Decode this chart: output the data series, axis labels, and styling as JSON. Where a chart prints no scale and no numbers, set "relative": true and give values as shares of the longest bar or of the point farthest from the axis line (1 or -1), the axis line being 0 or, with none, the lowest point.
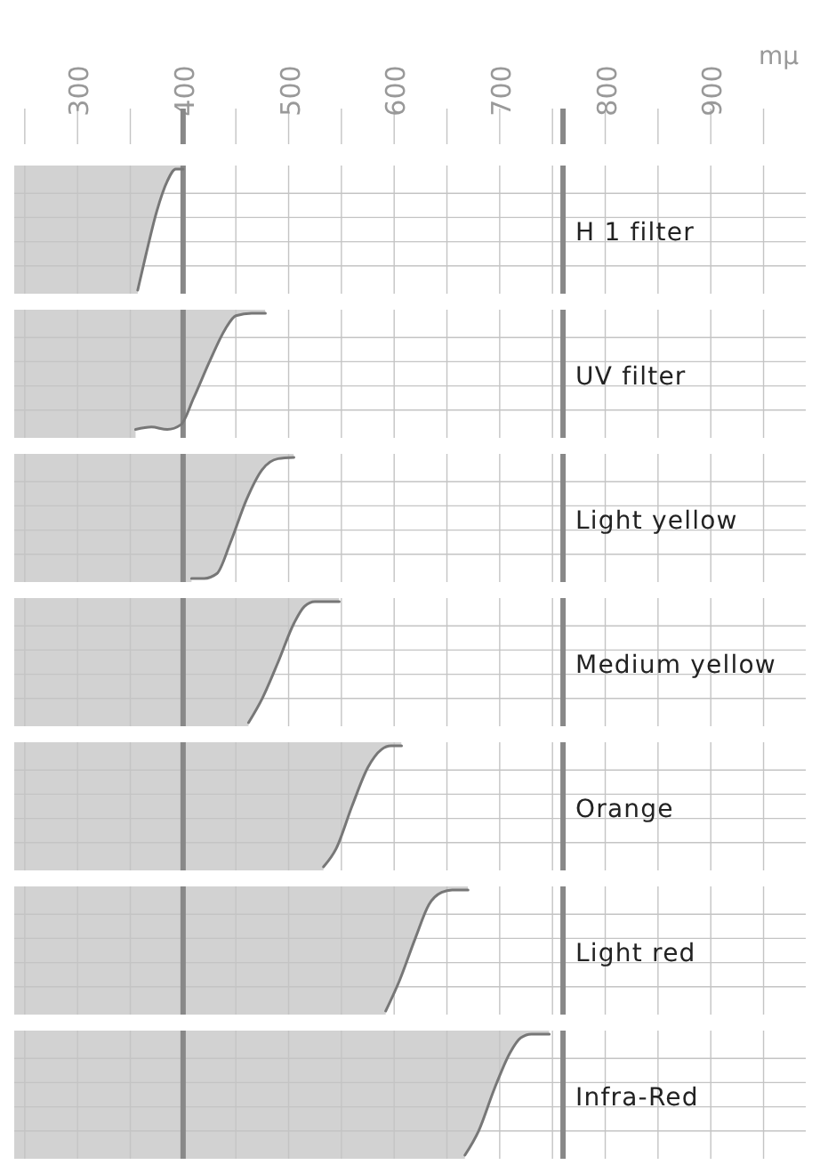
{
  "chart_data": [
    {
      "type": "line",
      "title": "H 1 filter",
      "xlabel": "mμ",
      "relative": true,
      "xlim": [
        240,
        990
      ],
      "xticks": [
        {
          "value": 250,
          "label": null
        },
        300,
        {
          "value": 350,
          "label": null
        },
        400,
        {
          "value": 450,
          "label": null
        },
        500,
        {
          "value": 550,
          "label": null
        },
        600,
        {
          "value": 650,
          "label": null
        },
        700,
        {
          "value": 750,
          "label": null
        },
        800,
        {
          "value": 850,
          "label": null
        },
        900,
        {
          "value": 950,
          "label": null
        }
      ],
      "grid": true,
      "ref_lines": [
        {
          "axis": "x",
          "value": 400,
          "color": "#888888"
        },
        {
          "axis": "x",
          "value": 760,
          "color": "#888888"
        }
      ],
      "bands": [
        {
          "axis": "x",
          "from": 240,
          "to": 400,
          "color": "#d2d2d2"
        }
      ],
      "series": [
        {
          "color": "#777777",
          "x": [
            357,
            365,
            375,
            385,
            393,
            400
          ],
          "values": [
            0,
            0.3,
            0.65,
            0.9,
            1,
            1
          ]
        }
      ]
    },
    {
      "type": "line",
      "title": "UV filter",
      "relative": true,
      "tick_labels": false,
      "xlim": [
        240,
        990
      ],
      "xticks": [
        {
          "value": 250,
          "label": null
        },
        {
          "value": 300,
          "label": null
        },
        {
          "value": 350,
          "label": null
        },
        {
          "value": 400,
          "label": null
        },
        {
          "value": 450,
          "label": null
        },
        {
          "value": 500,
          "label": null
        },
        {
          "value": 550,
          "label": null
        },
        {
          "value": 600,
          "label": null
        },
        {
          "value": 650,
          "label": null
        },
        {
          "value": 700,
          "label": null
        },
        {
          "value": 750,
          "label": null
        },
        {
          "value": 800,
          "label": null
        },
        {
          "value": 850,
          "label": null
        },
        {
          "value": 900,
          "label": null
        },
        {
          "value": 950,
          "label": null
        }
      ],
      "grid": true,
      "ref_lines": [
        {
          "axis": "x",
          "value": 400,
          "color": "#888888"
        },
        {
          "axis": "x",
          "value": 760,
          "color": "#888888"
        }
      ],
      "bands": [
        {
          "axis": "x",
          "from": 240,
          "to": 478,
          "color": "#d2d2d2"
        }
      ],
      "series": [
        {
          "color": "#777777",
          "x": [
            355,
            370,
            385,
            398,
            410,
            425,
            440,
            450,
            465,
            478
          ],
          "values": [
            0.04,
            0.06,
            0.04,
            0.08,
            0.3,
            0.6,
            0.87,
            0.98,
            1,
            1
          ]
        }
      ]
    },
    {
      "type": "line",
      "title": "Light yellow",
      "relative": true,
      "tick_labels": false,
      "xlim": [
        240,
        990
      ],
      "xticks": [
        {
          "value": 250,
          "label": null
        },
        {
          "value": 300,
          "label": null
        },
        {
          "value": 350,
          "label": null
        },
        {
          "value": 400,
          "label": null
        },
        {
          "value": 450,
          "label": null
        },
        {
          "value": 500,
          "label": null
        },
        {
          "value": 550,
          "label": null
        },
        {
          "value": 600,
          "label": null
        },
        {
          "value": 650,
          "label": null
        },
        {
          "value": 700,
          "label": null
        },
        {
          "value": 750,
          "label": null
        },
        {
          "value": 800,
          "label": null
        },
        {
          "value": 850,
          "label": null
        },
        {
          "value": 900,
          "label": null
        },
        {
          "value": 950,
          "label": null
        }
      ],
      "grid": true,
      "ref_lines": [
        {
          "axis": "x",
          "value": 400,
          "color": "#888888"
        },
        {
          "axis": "x",
          "value": 760,
          "color": "#888888"
        }
      ],
      "bands": [
        {
          "axis": "x",
          "from": 240,
          "to": 505,
          "color": "#d2d2d2"
        }
      ],
      "series": [
        {
          "color": "#777777",
          "x": [
            408,
            420,
            432,
            445,
            460,
            475,
            490,
            505
          ],
          "values": [
            0,
            0,
            0.04,
            0.3,
            0.65,
            0.9,
            0.99,
            1
          ]
        }
      ]
    },
    {
      "type": "line",
      "title": "Medium yellow",
      "relative": true,
      "tick_labels": false,
      "xlim": [
        240,
        990
      ],
      "xticks": [
        {
          "value": 250,
          "label": null
        },
        {
          "value": 300,
          "label": null
        },
        {
          "value": 350,
          "label": null
        },
        {
          "value": 400,
          "label": null
        },
        {
          "value": 450,
          "label": null
        },
        {
          "value": 500,
          "label": null
        },
        {
          "value": 550,
          "label": null
        },
        {
          "value": 600,
          "label": null
        },
        {
          "value": 650,
          "label": null
        },
        {
          "value": 700,
          "label": null
        },
        {
          "value": 750,
          "label": null
        },
        {
          "value": 800,
          "label": null
        },
        {
          "value": 850,
          "label": null
        },
        {
          "value": 900,
          "label": null
        },
        {
          "value": 950,
          "label": null
        }
      ],
      "grid": true,
      "ref_lines": [
        {
          "axis": "x",
          "value": 400,
          "color": "#888888"
        },
        {
          "axis": "x",
          "value": 760,
          "color": "#888888"
        }
      ],
      "bands": [
        {
          "axis": "x",
          "from": 240,
          "to": 548,
          "color": "#d2d2d2"
        }
      ],
      "series": [
        {
          "color": "#777777",
          "x": [
            462,
            475,
            490,
            505,
            515,
            525,
            548
          ],
          "values": [
            0,
            0.2,
            0.5,
            0.82,
            0.96,
            1,
            1
          ]
        }
      ]
    },
    {
      "type": "line",
      "title": "Orange",
      "relative": true,
      "tick_labels": false,
      "xlim": [
        240,
        990
      ],
      "xticks": [
        {
          "value": 250,
          "label": null
        },
        {
          "value": 300,
          "label": null
        },
        {
          "value": 350,
          "label": null
        },
        {
          "value": 400,
          "label": null
        },
        {
          "value": 450,
          "label": null
        },
        {
          "value": 500,
          "label": null
        },
        {
          "value": 550,
          "label": null
        },
        {
          "value": 600,
          "label": null
        },
        {
          "value": 650,
          "label": null
        },
        {
          "value": 700,
          "label": null
        },
        {
          "value": 750,
          "label": null
        },
        {
          "value": 800,
          "label": null
        },
        {
          "value": 850,
          "label": null
        },
        {
          "value": 900,
          "label": null
        },
        {
          "value": 950,
          "label": null
        }
      ],
      "grid": true,
      "ref_lines": [
        {
          "axis": "x",
          "value": 400,
          "color": "#888888"
        },
        {
          "axis": "x",
          "value": 760,
          "color": "#888888"
        }
      ],
      "bands": [
        {
          "axis": "x",
          "from": 240,
          "to": 607,
          "color": "#d2d2d2"
        }
      ],
      "series": [
        {
          "color": "#777777",
          "x": [
            533,
            545,
            560,
            575,
            588,
            597,
            607
          ],
          "values": [
            0,
            0.15,
            0.5,
            0.82,
            0.97,
            1,
            1
          ]
        }
      ]
    },
    {
      "type": "line",
      "title": "Light red",
      "relative": true,
      "tick_labels": false,
      "xlim": [
        240,
        990
      ],
      "xticks": [
        {
          "value": 250,
          "label": null
        },
        {
          "value": 300,
          "label": null
        },
        {
          "value": 350,
          "label": null
        },
        {
          "value": 400,
          "label": null
        },
        {
          "value": 450,
          "label": null
        },
        {
          "value": 500,
          "label": null
        },
        {
          "value": 550,
          "label": null
        },
        {
          "value": 600,
          "label": null
        },
        {
          "value": 650,
          "label": null
        },
        {
          "value": 700,
          "label": null
        },
        {
          "value": 750,
          "label": null
        },
        {
          "value": 800,
          "label": null
        },
        {
          "value": 850,
          "label": null
        },
        {
          "value": 900,
          "label": null
        },
        {
          "value": 950,
          "label": null
        }
      ],
      "grid": true,
      "ref_lines": [
        {
          "axis": "x",
          "value": 400,
          "color": "#888888"
        },
        {
          "axis": "x",
          "value": 760,
          "color": "#888888"
        }
      ],
      "bands": [
        {
          "axis": "x",
          "from": 240,
          "to": 670,
          "color": "#d2d2d2"
        }
      ],
      "series": [
        {
          "color": "#777777",
          "x": [
            592,
            605,
            620,
            633,
            645,
            655,
            670
          ],
          "values": [
            0,
            0.25,
            0.6,
            0.88,
            0.98,
            1,
            1
          ]
        }
      ]
    },
    {
      "type": "line",
      "title": "Infra-Red",
      "relative": true,
      "tick_labels": false,
      "xlim": [
        240,
        990
      ],
      "xticks": [
        {
          "value": 250,
          "label": null
        },
        {
          "value": 300,
          "label": null
        },
        {
          "value": 350,
          "label": null
        },
        {
          "value": 400,
          "label": null
        },
        {
          "value": 450,
          "label": null
        },
        {
          "value": 500,
          "label": null
        },
        {
          "value": 550,
          "label": null
        },
        {
          "value": 600,
          "label": null
        },
        {
          "value": 650,
          "label": null
        },
        {
          "value": 700,
          "label": null
        },
        {
          "value": 750,
          "label": null
        },
        {
          "value": 800,
          "label": null
        },
        {
          "value": 850,
          "label": null
        },
        {
          "value": 900,
          "label": null
        },
        {
          "value": 950,
          "label": null
        }
      ],
      "grid": true,
      "ref_lines": [
        {
          "axis": "x",
          "value": 400,
          "color": "#888888"
        },
        {
          "axis": "x",
          "value": 760,
          "color": "#888888"
        }
      ],
      "bands": [
        {
          "axis": "x",
          "from": 240,
          "to": 747,
          "color": "#d2d2d2"
        }
      ],
      "series": [
        {
          "color": "#777777",
          "x": [
            667,
            680,
            695,
            710,
            720,
            730,
            747
          ],
          "values": [
            0,
            0.2,
            0.55,
            0.85,
            0.97,
            1,
            1
          ]
        }
      ]
    }
  ]
}
